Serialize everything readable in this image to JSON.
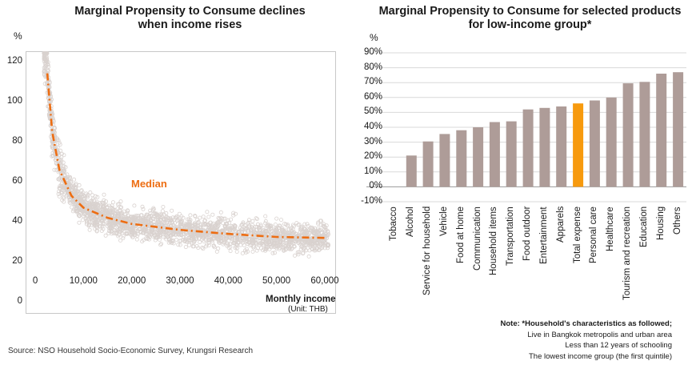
{
  "left_chart": {
    "title_line1": "Marginal Propensity to Consume declines",
    "title_line2": "when income rises",
    "unit": "%",
    "xlabel": "Monthly income",
    "xunit": "(Unit: THB)",
    "median_label": "Median"
  },
  "right_chart": {
    "title_line1": "Marginal Propensity to Consume for selected products",
    "title_line2": "for low-income group*",
    "unit": "%"
  },
  "note": {
    "heading": "Note: *Household's characteristics as followed;",
    "line1": "Live in Bangkok metropolis  and urban area",
    "line2": "Less than 12 years of schooling",
    "line3": "The lowest income group (the first quintile)"
  },
  "source": "Source: NSO Household Socio-Economic Survey, Krungsri Research",
  "colors": {
    "scatter": "#d9d2cf",
    "median": "#ed6d12",
    "bar": "#ae9c98",
    "highlight": "#f79a0e"
  },
  "chart_data": [
    {
      "type": "scatter",
      "title": "Marginal Propensity to Consume declines when income rises",
      "xlabel": "Monthly income",
      "ylabel": "%",
      "xlim": [
        -2000,
        62000
      ],
      "ylim": [
        -5,
        125
      ],
      "x_ticks": [
        "0",
        "10,000",
        "20,000",
        "30,000",
        "40,000",
        "50,000",
        "60,000"
      ],
      "y_ticks": [
        "0",
        "20",
        "40",
        "60",
        "80",
        "100",
        "120"
      ],
      "median": {
        "name": "Median",
        "x": [
          2500,
          3500,
          5000,
          7500,
          10000,
          15000,
          20000,
          30000,
          40000,
          50000,
          60000
        ],
        "y": [
          114,
          85,
          66,
          53,
          47,
          42,
          39,
          36,
          34,
          32.5,
          32
        ]
      }
    },
    {
      "type": "bar",
      "title": "Marginal Propensity to Consume for selected products for low-income group*",
      "ylabel": "%",
      "ylim": [
        -10,
        90
      ],
      "y_ticks": [
        "90%",
        "80%",
        "70%",
        "60%",
        "50%",
        "40%",
        "30%",
        "20%",
        "10%",
        "0%",
        "-10%"
      ],
      "categories": [
        "Tobacco",
        "Alcohol",
        "Service for household",
        "Vehicle",
        "Food at home",
        "Communication",
        "Household items",
        "Transportation",
        "Food outdoor",
        "Entertainment",
        "Apparels",
        "Total expense",
        "Personal care",
        "Healthcare",
        "Tourism and recreation",
        "Education",
        "Housing",
        "Others"
      ],
      "values": [
        0,
        21,
        30.5,
        35.5,
        38,
        40,
        43.5,
        44,
        52,
        53,
        54,
        56,
        58,
        60,
        69.5,
        70.5,
        76,
        77
      ],
      "highlight": "Total expense",
      "grid": true
    }
  ]
}
